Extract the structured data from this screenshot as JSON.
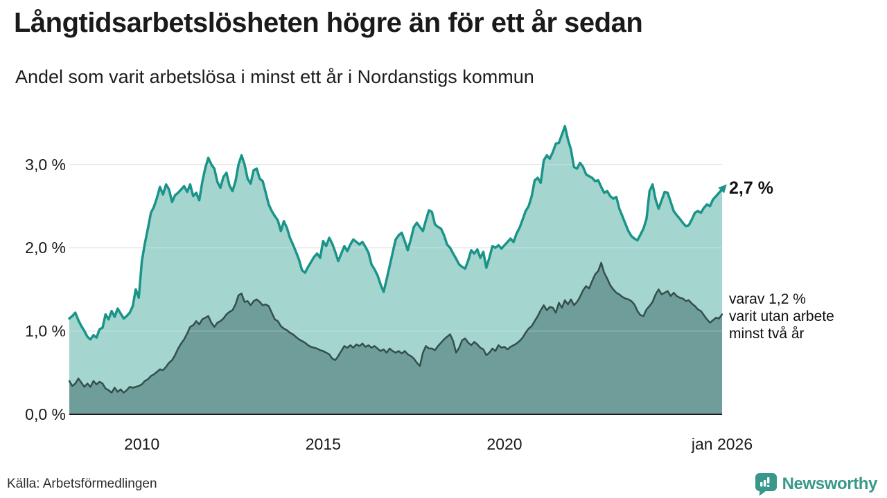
{
  "header": {
    "title": "Långtidsarbetslösheten högre än för ett år sedan",
    "subtitle": "Andel som varit arbetslösa i minst ett år i Nordanstigs kommun"
  },
  "annotations": {
    "latest_value": "2,7 %",
    "secondary_line1": "varav 1,2 %",
    "secondary_line2": "varit utan arbete",
    "secondary_line3": "minst två år"
  },
  "footer": {
    "source": "Källa: Arbetsförmedlingen",
    "logo_text": "Newsworthy"
  },
  "colors": {
    "primary_line": "#1a9489",
    "primary_fill": "#a4d5ce",
    "secondary_line": "#344f4b",
    "secondary_fill": "#6f9d99",
    "gridline": "#d9d9d9",
    "axis_line": "#1a1a1a",
    "text": "#1a1a1a",
    "logo_teal": "#38988a"
  },
  "chart_data": {
    "type": "area",
    "title": "Långtidsarbetslösheten högre än för ett år sedan",
    "subtitle": "Andel som varit arbetslösa i minst ett år i Nordanstigs kommun",
    "unit": "%",
    "frequency": "monthly",
    "x_start": "2008-01",
    "x_end": "2026-01",
    "grid": "horizontal",
    "ylim": [
      0,
      3.6
    ],
    "y_ticks": [
      {
        "label": "0,0 %",
        "value": 0.0
      },
      {
        "label": "1,0 %",
        "value": 1.0
      },
      {
        "label": "2,0 %",
        "value": 2.0
      },
      {
        "label": "3,0 %",
        "value": 3.0
      }
    ],
    "x_ticks": [
      {
        "label": "2010",
        "month_index": 24
      },
      {
        "label": "2015",
        "month_index": 84
      },
      {
        "label": "2020",
        "month_index": 144
      },
      {
        "label": "jan 2026",
        "month_index": 216
      }
    ],
    "series": [
      {
        "name": "Andel arbetslösa minst ett år",
        "line_color": "#1a9489",
        "fill_color": "#a4d5ce",
        "line_width": 3.5,
        "end_label": "2,7 %",
        "end_value": 2.7,
        "arrow_end": true,
        "values": [
          1.15,
          1.18,
          1.22,
          1.13,
          1.06,
          1.0,
          0.93,
          0.9,
          0.95,
          0.92,
          1.02,
          1.04,
          1.2,
          1.14,
          1.24,
          1.17,
          1.27,
          1.21,
          1.15,
          1.18,
          1.22,
          1.3,
          1.5,
          1.4,
          1.84,
          2.05,
          2.23,
          2.42,
          2.49,
          2.6,
          2.73,
          2.64,
          2.76,
          2.7,
          2.55,
          2.63,
          2.66,
          2.7,
          2.74,
          2.67,
          2.76,
          2.62,
          2.66,
          2.57,
          2.79,
          2.96,
          3.08,
          3.0,
          2.95,
          2.79,
          2.72,
          2.85,
          2.9,
          2.75,
          2.68,
          2.8,
          3.0,
          3.11,
          3.0,
          2.83,
          2.77,
          2.93,
          2.95,
          2.83,
          2.8,
          2.66,
          2.52,
          2.44,
          2.38,
          2.33,
          2.2,
          2.32,
          2.24,
          2.12,
          2.04,
          1.95,
          1.86,
          1.73,
          1.7,
          1.77,
          1.83,
          1.89,
          1.93,
          1.88,
          2.08,
          2.02,
          2.12,
          2.05,
          1.95,
          1.84,
          1.93,
          2.02,
          1.96,
          2.04,
          2.1,
          2.07,
          2.04,
          2.07,
          2.01,
          1.94,
          1.8,
          1.74,
          1.67,
          1.56,
          1.47,
          1.62,
          1.78,
          1.94,
          2.1,
          2.15,
          2.18,
          2.08,
          1.97,
          2.1,
          2.25,
          2.3,
          2.25,
          2.2,
          2.33,
          2.45,
          2.43,
          2.28,
          2.25,
          2.23,
          2.15,
          2.04,
          2.0,
          1.93,
          1.87,
          1.8,
          1.77,
          1.75,
          1.85,
          1.97,
          1.93,
          1.98,
          1.88,
          1.95,
          1.76,
          1.88,
          2.02,
          2.0,
          2.03,
          1.99,
          2.03,
          2.07,
          2.11,
          2.07,
          2.17,
          2.24,
          2.34,
          2.44,
          2.5,
          2.62,
          2.81,
          2.84,
          2.78,
          3.05,
          3.11,
          3.07,
          3.15,
          3.25,
          3.26,
          3.36,
          3.46,
          3.3,
          3.18,
          2.97,
          2.95,
          3.02,
          2.97,
          2.88,
          2.86,
          2.84,
          2.8,
          2.81,
          2.73,
          2.66,
          2.68,
          2.62,
          2.59,
          2.61,
          2.47,
          2.38,
          2.29,
          2.2,
          2.14,
          2.11,
          2.09,
          2.16,
          2.23,
          2.35,
          2.68,
          2.76,
          2.58,
          2.47,
          2.57,
          2.67,
          2.66,
          2.55,
          2.44,
          2.39,
          2.35,
          2.3,
          2.26,
          2.27,
          2.34,
          2.42,
          2.44,
          2.42,
          2.48,
          2.52,
          2.5,
          2.58,
          2.62,
          2.66,
          2.7
        ]
      },
      {
        "name": "varav utan arbete minst två år",
        "line_color": "#344f4b",
        "fill_color": "#6f9d99",
        "line_width": 2.5,
        "end_label": "1,2 %",
        "end_value": 1.2,
        "arrow_end": false,
        "values": [
          0.4,
          0.34,
          0.37,
          0.43,
          0.38,
          0.33,
          0.37,
          0.33,
          0.4,
          0.36,
          0.39,
          0.37,
          0.31,
          0.29,
          0.26,
          0.32,
          0.27,
          0.3,
          0.26,
          0.29,
          0.33,
          0.32,
          0.33,
          0.34,
          0.36,
          0.4,
          0.42,
          0.46,
          0.48,
          0.51,
          0.54,
          0.53,
          0.57,
          0.62,
          0.65,
          0.71,
          0.79,
          0.85,
          0.9,
          0.97,
          1.05,
          1.07,
          1.12,
          1.08,
          1.14,
          1.16,
          1.18,
          1.1,
          1.05,
          1.1,
          1.12,
          1.15,
          1.2,
          1.23,
          1.25,
          1.32,
          1.43,
          1.45,
          1.35,
          1.36,
          1.31,
          1.36,
          1.38,
          1.35,
          1.31,
          1.32,
          1.3,
          1.22,
          1.14,
          1.12,
          1.06,
          1.03,
          1.01,
          0.98,
          0.96,
          0.93,
          0.9,
          0.88,
          0.86,
          0.83,
          0.81,
          0.8,
          0.79,
          0.77,
          0.76,
          0.74,
          0.72,
          0.67,
          0.65,
          0.7,
          0.76,
          0.82,
          0.8,
          0.83,
          0.8,
          0.84,
          0.82,
          0.85,
          0.81,
          0.83,
          0.8,
          0.82,
          0.79,
          0.76,
          0.78,
          0.74,
          0.79,
          0.76,
          0.74,
          0.76,
          0.73,
          0.76,
          0.72,
          0.7,
          0.67,
          0.62,
          0.58,
          0.74,
          0.82,
          0.79,
          0.79,
          0.77,
          0.82,
          0.86,
          0.9,
          0.93,
          0.96,
          0.88,
          0.74,
          0.8,
          0.89,
          0.91,
          0.86,
          0.83,
          0.87,
          0.84,
          0.8,
          0.78,
          0.71,
          0.74,
          0.79,
          0.76,
          0.83,
          0.8,
          0.81,
          0.78,
          0.81,
          0.83,
          0.85,
          0.88,
          0.92,
          0.98,
          1.03,
          1.06,
          1.12,
          1.18,
          1.25,
          1.31,
          1.25,
          1.29,
          1.28,
          1.22,
          1.34,
          1.28,
          1.37,
          1.32,
          1.38,
          1.31,
          1.35,
          1.41,
          1.49,
          1.54,
          1.51,
          1.6,
          1.68,
          1.72,
          1.82,
          1.7,
          1.63,
          1.55,
          1.5,
          1.46,
          1.44,
          1.41,
          1.39,
          1.38,
          1.36,
          1.32,
          1.24,
          1.19,
          1.18,
          1.26,
          1.3,
          1.35,
          1.44,
          1.5,
          1.44,
          1.46,
          1.48,
          1.42,
          1.46,
          1.42,
          1.4,
          1.39,
          1.36,
          1.37,
          1.33,
          1.3,
          1.26,
          1.24,
          1.19,
          1.14,
          1.1,
          1.13,
          1.16,
          1.15,
          1.2
        ]
      }
    ]
  }
}
